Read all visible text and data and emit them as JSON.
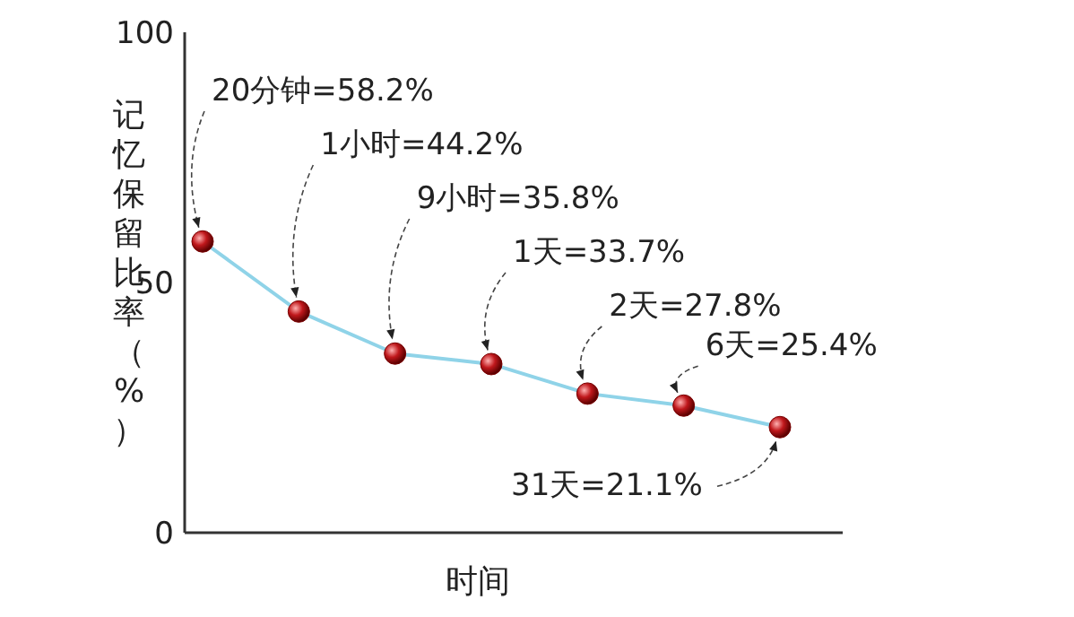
{
  "chart_data": {
    "type": "line",
    "xlabel": "时间",
    "ylabel": "记忆保留比率（%）",
    "categories": [
      null,
      null,
      null,
      null,
      null,
      null,
      null
    ],
    "series": [
      {
        "color": "#8fd3e8",
        "values": [
          58.2,
          44.2,
          35.8,
          33.7,
          27.8,
          25.4,
          21.1
        ],
        "value_labels": [
          "20分钟=58.2%",
          "1小时=44.2%",
          "9小时=35.8%",
          "1天=33.7%",
          "2天=27.8%",
          "6天=25.4%",
          "31天=21.1%"
        ]
      }
    ],
    "ylim": [
      0,
      100
    ],
    "yticks": [
      0,
      50,
      100
    ],
    "grid": false,
    "marker": "circle",
    "line_style": "solid"
  }
}
